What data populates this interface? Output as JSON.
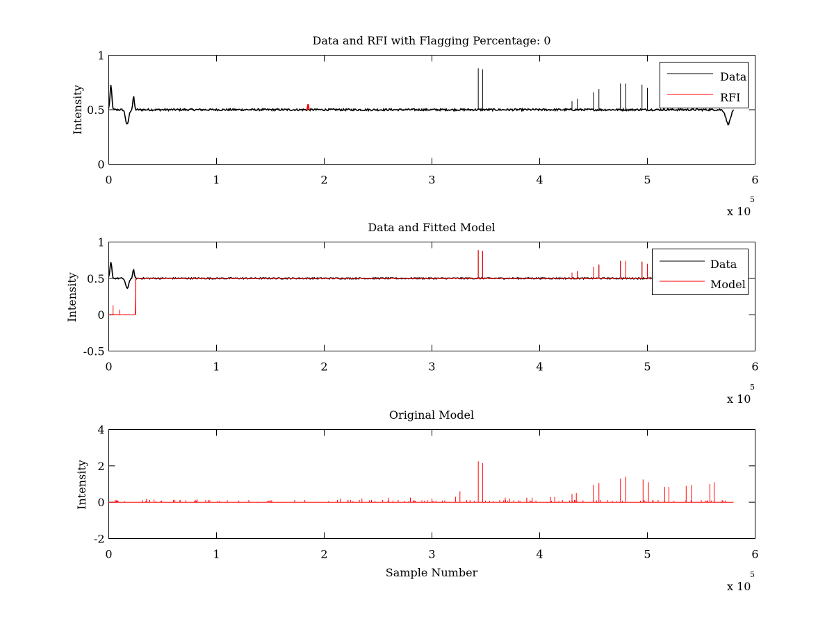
{
  "figure": {
    "xlabel": "Sample Number",
    "multiplier": "x 10",
    "exponent": "5"
  },
  "chart_data": [
    {
      "type": "line",
      "title": "Data and RFI with Flagging Percentage: 0",
      "ylabel": "Intensity",
      "xlim": [
        0,
        6
      ],
      "ylim": [
        0,
        1
      ],
      "xticks": [
        0,
        1,
        2,
        3,
        4,
        5,
        6
      ],
      "yticks": [
        0,
        0.5,
        1
      ],
      "legend": [
        {
          "name": "Data",
          "color": "#000000"
        },
        {
          "name": "RFI",
          "color": "#ff0000"
        }
      ],
      "legend_position": "top-right",
      "series": [
        {
          "name": "Data",
          "color": "#000000",
          "base": 0.5,
          "x_end": 5.8,
          "features": [
            [
              0.02,
              0.72,
              0.012
            ],
            [
              0.17,
              0.36,
              0.02
            ],
            [
              0.23,
              0.62,
              0.01
            ],
            [
              5.75,
              0.37,
              0.03
            ]
          ],
          "spikes": [
            [
              3.43,
              0.88
            ],
            [
              3.47,
              0.87
            ],
            [
              4.3,
              0.58
            ],
            [
              4.35,
              0.6
            ],
            [
              4.5,
              0.66
            ],
            [
              4.55,
              0.69
            ],
            [
              4.75,
              0.74
            ],
            [
              4.8,
              0.74
            ],
            [
              4.95,
              0.73
            ],
            [
              5.0,
              0.7
            ],
            [
              5.15,
              0.55
            ],
            [
              5.2,
              0.56
            ]
          ]
        },
        {
          "name": "RFI",
          "color": "#ff0000",
          "points": [
            [
              1.84,
              0.5
            ],
            [
              1.85,
              0.55
            ],
            [
              1.86,
              0.5
            ]
          ]
        }
      ]
    },
    {
      "type": "line",
      "title": "Data and Fitted Model",
      "ylabel": "Intensity",
      "xlim": [
        0,
        6
      ],
      "ylim": [
        -0.5,
        1
      ],
      "xticks": [
        0,
        1,
        2,
        3,
        4,
        5,
        6
      ],
      "yticks": [
        -0.5,
        0,
        0.5,
        1
      ],
      "legend": [
        {
          "name": "Data",
          "color": "#000000"
        },
        {
          "name": "Model",
          "color": "#ff0000"
        }
      ],
      "legend_position": "top-right",
      "series": [
        {
          "name": "Data",
          "color": "#000000",
          "base": 0.5,
          "x_end": 5.8,
          "features": [
            [
              0.02,
              0.72,
              0.012
            ],
            [
              0.17,
              0.36,
              0.02
            ],
            [
              0.23,
              0.62,
              0.01
            ],
            [
              5.75,
              0.37,
              0.03
            ]
          ],
          "spikes": [
            [
              3.43,
              0.88
            ],
            [
              3.47,
              0.87
            ],
            [
              4.3,
              0.58
            ],
            [
              4.35,
              0.6
            ],
            [
              4.5,
              0.66
            ],
            [
              4.55,
              0.69
            ],
            [
              4.75,
              0.74
            ],
            [
              4.8,
              0.74
            ],
            [
              4.95,
              0.73
            ],
            [
              5.0,
              0.7
            ]
          ]
        },
        {
          "name": "Model",
          "color": "#ff0000",
          "base": 0.5,
          "x_end": 5.8,
          "step": {
            "from": 0,
            "to": 0.25,
            "level": 0,
            "spikes": [
              [
                0.04,
                0.13
              ],
              [
                0.1,
                0.07
              ]
            ]
          },
          "spikes": [
            [
              3.43,
              0.89
            ],
            [
              3.47,
              0.88
            ],
            [
              4.3,
              0.58
            ],
            [
              4.35,
              0.6
            ],
            [
              4.5,
              0.66
            ],
            [
              4.55,
              0.69
            ],
            [
              4.75,
              0.74
            ],
            [
              4.8,
              0.74
            ],
            [
              4.95,
              0.73
            ],
            [
              5.0,
              0.7
            ]
          ]
        }
      ]
    },
    {
      "type": "line",
      "title": "Original Model",
      "ylabel": "Intensity",
      "xlim": [
        0,
        6
      ],
      "ylim": [
        -2,
        4
      ],
      "xticks": [
        0,
        1,
        2,
        3,
        4,
        5,
        6
      ],
      "yticks": [
        -2,
        0,
        2,
        4
      ],
      "series": [
        {
          "name": "Original Model",
          "color": "#ff0000",
          "base": 0,
          "x_end": 5.8,
          "spikes": [
            [
              0.06,
              0.12
            ],
            [
              0.35,
              0.18
            ],
            [
              0.42,
              0.15
            ],
            [
              0.6,
              0.12
            ],
            [
              0.82,
              0.16
            ],
            [
              1.1,
              0.1
            ],
            [
              1.3,
              0.12
            ],
            [
              1.5,
              0.1
            ],
            [
              1.82,
              0.12
            ],
            [
              2.15,
              0.2
            ],
            [
              2.35,
              0.2
            ],
            [
              2.6,
              0.25
            ],
            [
              2.8,
              0.25
            ],
            [
              3.0,
              0.2
            ],
            [
              3.22,
              0.3
            ],
            [
              3.26,
              0.6
            ],
            [
              3.43,
              2.25
            ],
            [
              3.47,
              2.15
            ],
            [
              3.68,
              0.25
            ],
            [
              3.72,
              0.2
            ],
            [
              3.88,
              0.25
            ],
            [
              3.93,
              0.25
            ],
            [
              4.1,
              0.3
            ],
            [
              4.14,
              0.3
            ],
            [
              4.3,
              0.45
            ],
            [
              4.34,
              0.5
            ],
            [
              4.5,
              0.95
            ],
            [
              4.55,
              1.05
            ],
            [
              4.75,
              1.3
            ],
            [
              4.8,
              1.4
            ],
            [
              4.96,
              1.25
            ],
            [
              5.01,
              1.1
            ],
            [
              5.16,
              0.85
            ],
            [
              5.2,
              0.85
            ],
            [
              5.36,
              0.9
            ],
            [
              5.41,
              0.95
            ],
            [
              5.58,
              1.0
            ],
            [
              5.62,
              1.1
            ]
          ]
        }
      ]
    }
  ]
}
